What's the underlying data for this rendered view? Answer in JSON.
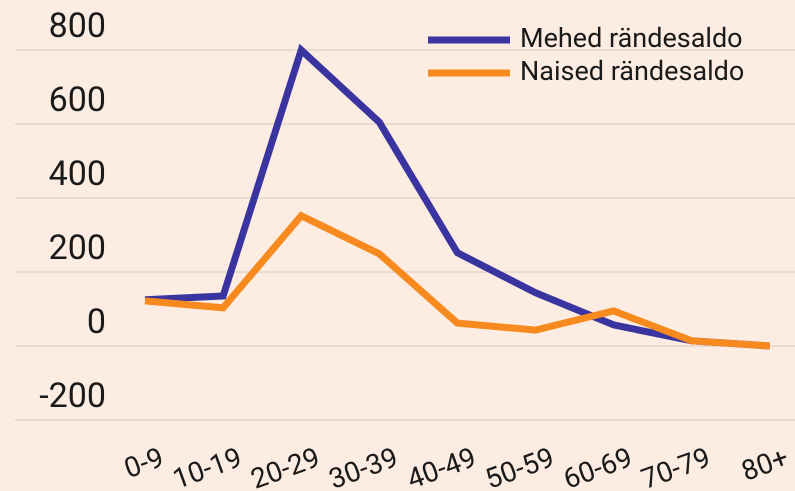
{
  "chart_data": {
    "type": "line",
    "categories": [
      "0-9",
      "10-19",
      "20-29",
      "30-39",
      "40-49",
      "50-59",
      "60-69",
      "70-79",
      "80+"
    ],
    "series": [
      {
        "name": "Mehed rändesaldo",
        "color": "#3a34a0",
        "values": [
          125,
          135,
          800,
          605,
          252,
          144,
          57,
          14,
          0
        ]
      },
      {
        "name": "Naised rändesaldo",
        "color": "#f78a1e",
        "values": [
          122,
          103,
          352,
          249,
          62,
          43,
          95,
          14,
          0
        ]
      }
    ],
    "ylim": [
      -200,
      800
    ],
    "yticks": [
      -200,
      0,
      200,
      400,
      600,
      800
    ],
    "grid": true,
    "legend": "top-right"
  }
}
